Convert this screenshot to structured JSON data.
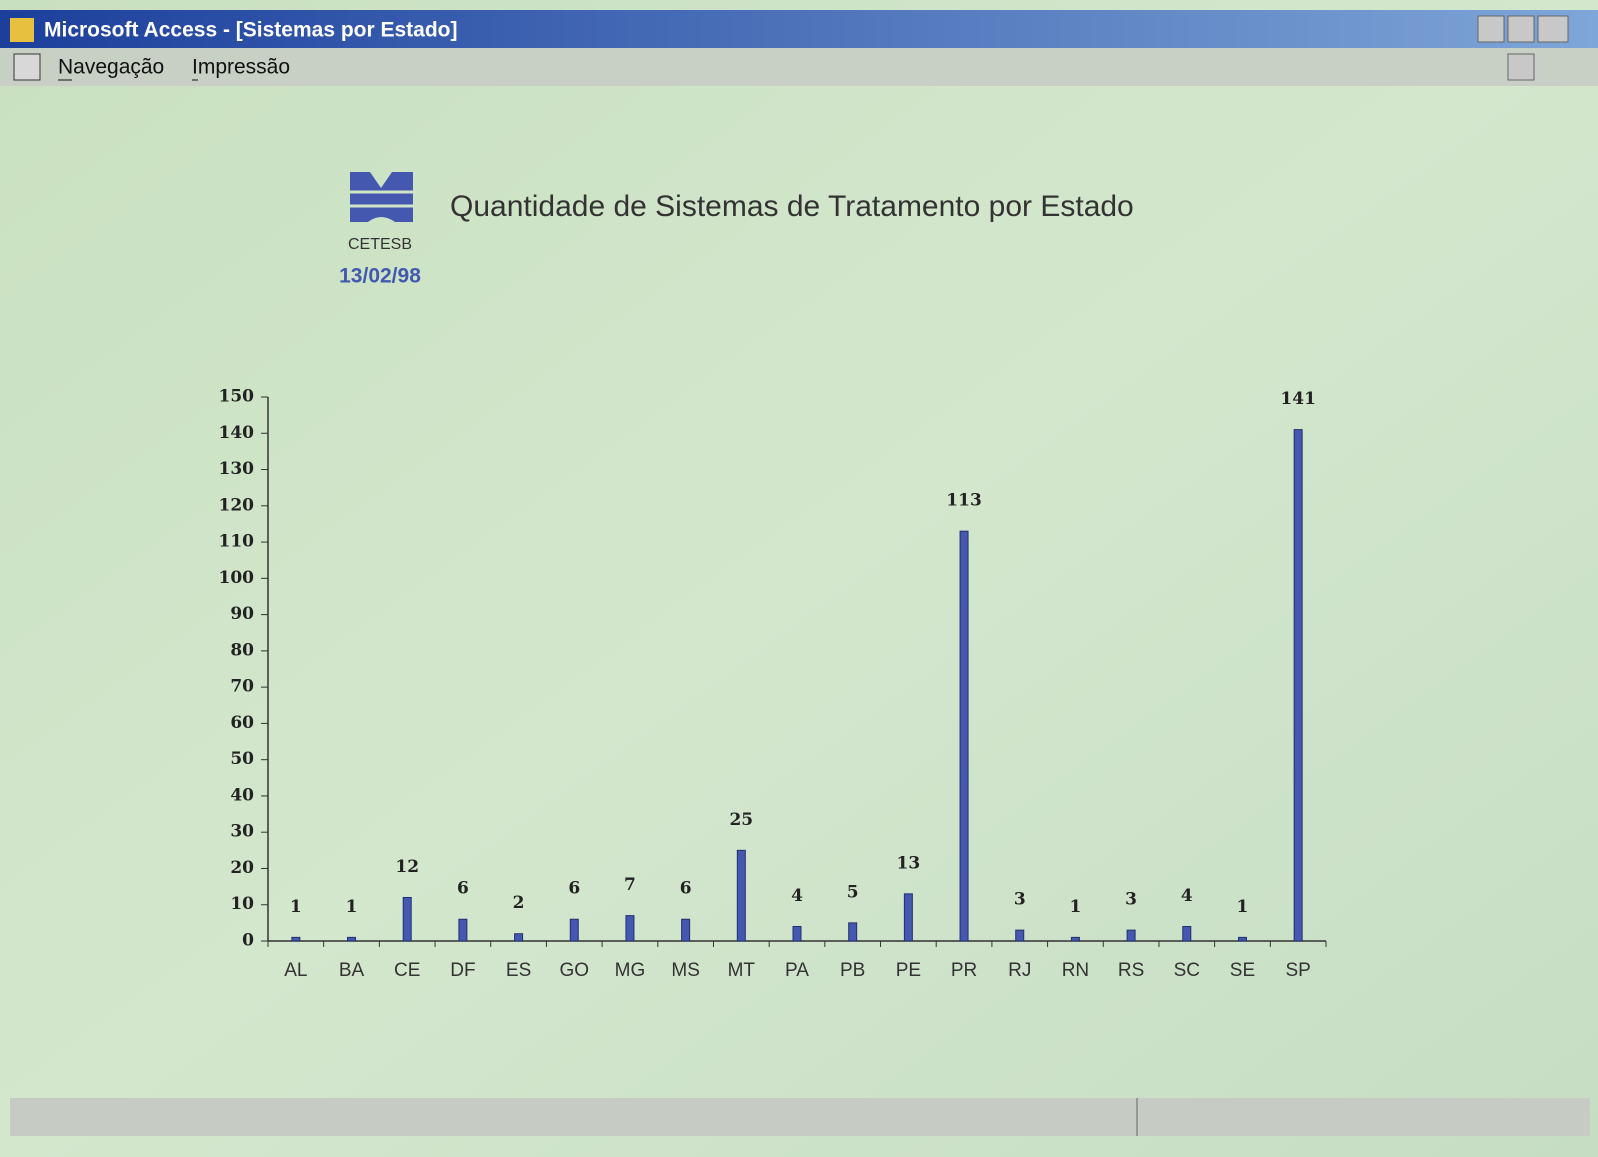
{
  "window": {
    "title": "Microsoft Access - [Sistemas por Estado]"
  },
  "menu": [
    "Navegação",
    "Impressão"
  ],
  "report": {
    "logo_text": "CETESB",
    "date": "13/02/98"
  },
  "chart_data": {
    "type": "bar",
    "title": "Quantidade de Sistemas de Tratamento por Estado",
    "categories": [
      "AL",
      "BA",
      "CE",
      "DF",
      "ES",
      "GO",
      "MG",
      "MS",
      "MT",
      "PA",
      "PB",
      "PE",
      "PR",
      "RJ",
      "RN",
      "RS",
      "SC",
      "SE",
      "SP"
    ],
    "values": [
      1,
      1,
      12,
      6,
      2,
      6,
      7,
      6,
      25,
      4,
      5,
      13,
      113,
      3,
      1,
      3,
      4,
      1,
      141
    ],
    "color": "#4558b0",
    "ylim": [
      0,
      150
    ],
    "yticks": [
      0,
      10,
      20,
      30,
      40,
      50,
      60,
      70,
      80,
      90,
      100,
      110,
      120,
      130,
      140,
      150
    ]
  }
}
